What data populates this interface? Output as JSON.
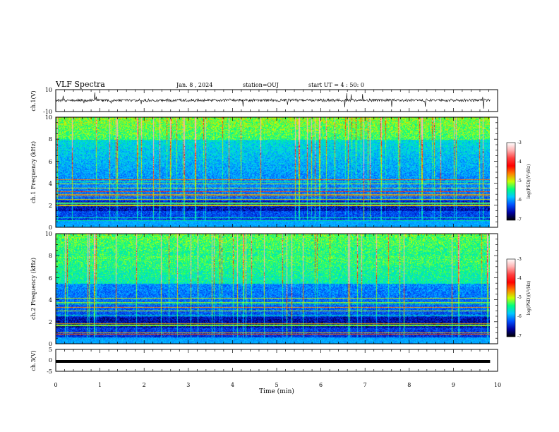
{
  "header": {
    "title": "VLF Spectra",
    "date": "Jan. 8 , 2024",
    "station": "station=OUJ",
    "start": "start UT =  4 : 50: 0"
  },
  "chart_data": [
    {
      "type": "line",
      "panel": "ch1-waveform",
      "ylabel": "ch.1(V)",
      "ylim": [
        -10,
        10
      ],
      "y_ticks": [
        "10",
        "-10"
      ],
      "description_values": {
        "baseline": 0,
        "noise_amplitude": 1.3,
        "color": "#000000"
      }
    },
    {
      "type": "heatmap",
      "panel": "ch1-spectrogram",
      "ylabel": "ch.1 Frequency (kHz)",
      "ylim": [
        0,
        10
      ],
      "y_ticks": [
        "0",
        "2",
        "4",
        "6",
        "8",
        "10"
      ],
      "colorbar": {
        "label": "log(PSD)(V²/Hz)",
        "range": [
          -7,
          -3
        ],
        "ticks": [
          "-3",
          "-4",
          "-5",
          "-6",
          "-7"
        ]
      }
    },
    {
      "type": "heatmap",
      "panel": "ch2-spectrogram",
      "ylabel": "ch.2 Frequency (kHz)",
      "ylim": [
        0,
        10
      ],
      "y_ticks": [
        "0",
        "2",
        "4",
        "6",
        "8",
        "10"
      ],
      "colorbar": {
        "label": "log(PSD)(V²/Hz)",
        "range": [
          -7,
          -3
        ],
        "ticks": [
          "-3",
          "-4",
          "-5",
          "-6",
          "-7"
        ]
      }
    },
    {
      "type": "line",
      "panel": "ch3-waveform",
      "ylabel": "ch.3(V)",
      "ylim": [
        -5,
        5
      ],
      "y_ticks": [
        "5",
        "0",
        "-5"
      ],
      "description_values": {
        "baseline": -0.8,
        "color": "#000000"
      }
    }
  ],
  "x_axis": {
    "xlabel": "Time (min)",
    "xlim": [
      0,
      10
    ],
    "ticks": [
      "0",
      "1",
      "2",
      "3",
      "4",
      "5",
      "6",
      "7",
      "8",
      "9",
      "10"
    ],
    "data_end": 9.83
  },
  "colors": {
    "colormap": [
      "#000000",
      "#0000a0",
      "#0050ff",
      "#00c8ff",
      "#00ff80",
      "#c8ff00",
      "#ff8000",
      "#ff0000",
      "#ff4040",
      "#ffb0b0",
      "#ffffff"
    ]
  }
}
